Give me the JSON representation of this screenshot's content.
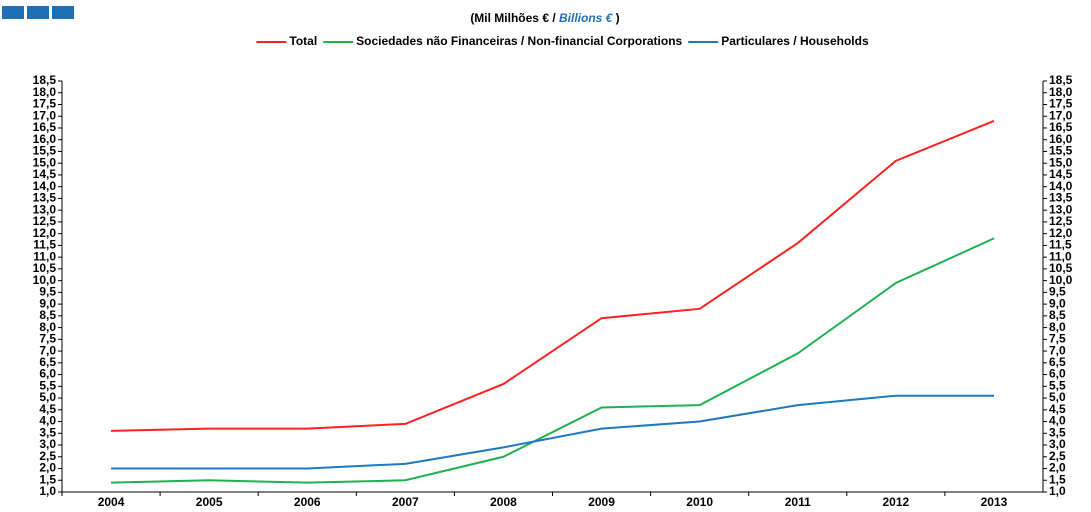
{
  "chart_data": {
    "type": "line",
    "subtitle": [
      "(Mil Milhões € / ",
      "Billions €",
      " )"
    ],
    "categories": [
      "2004",
      "2005",
      "2006",
      "2007",
      "2008",
      "2009",
      "2010",
      "2011",
      "2012",
      "2013"
    ],
    "series": [
      {
        "name": "Total",
        "color": "#ff2020",
        "values": [
          3.6,
          3.7,
          3.7,
          3.9,
          5.6,
          8.4,
          8.8,
          11.6,
          15.1,
          16.8
        ]
      },
      {
        "name": "Sociedades não Financeiras / Non-financial Corporations",
        "color": "#20b050",
        "values": [
          1.4,
          1.5,
          1.4,
          1.5,
          2.5,
          4.6,
          4.7,
          6.9,
          9.9,
          11.8
        ]
      },
      {
        "name": "Particulares / Households",
        "color": "#1f78c4",
        "values": [
          2.0,
          2.0,
          2.0,
          2.2,
          2.9,
          3.7,
          4.0,
          4.7,
          5.1,
          5.1
        ]
      }
    ],
    "ylim": [
      1,
      18.5
    ],
    "yticks": [
      {
        "value": 1,
        "label": "1,0"
      },
      {
        "value": 1.5,
        "label": "1,5"
      },
      {
        "value": 2,
        "label": "2,0"
      },
      {
        "value": 2.5,
        "label": "2,5"
      },
      {
        "value": 3,
        "label": "3,0"
      },
      {
        "value": 3.5,
        "label": "3,5"
      },
      {
        "value": 4,
        "label": "4,0"
      },
      {
        "value": 4.5,
        "label": "4,5"
      },
      {
        "value": 5,
        "label": "5,0"
      },
      {
        "value": 5.5,
        "label": "5,5"
      },
      {
        "value": 6,
        "label": "6,0"
      },
      {
        "value": 6.5,
        "label": "6,5"
      },
      {
        "value": 7,
        "label": "7,0"
      },
      {
        "value": 7.5,
        "label": "7,5"
      },
      {
        "value": 8,
        "label": "8,0"
      },
      {
        "value": 8.5,
        "label": "8,5"
      },
      {
        "value": 9,
        "label": "9,0"
      },
      {
        "value": 9.5,
        "label": "9,5"
      },
      {
        "value": 10,
        "label": "10,0"
      },
      {
        "value": 10.5,
        "label": "10,5"
      },
      {
        "value": 11,
        "label": "11,0"
      },
      {
        "value": 11.5,
        "label": "11,5"
      },
      {
        "value": 12,
        "label": "12,0"
      },
      {
        "value": 12.5,
        "label": "12,5"
      },
      {
        "value": 13,
        "label": "13,0"
      },
      {
        "value": 13.5,
        "label": "13,5"
      },
      {
        "value": 14,
        "label": "14,0"
      },
      {
        "value": 14.5,
        "label": "14,5"
      },
      {
        "value": 15,
        "label": "15,0"
      },
      {
        "value": 15.5,
        "label": "15,5"
      },
      {
        "value": 16,
        "label": "16,0"
      },
      {
        "value": 16.5,
        "label": "16,5"
      },
      {
        "value": 17,
        "label": "17,0"
      },
      {
        "value": 17.5,
        "label": "17,5"
      },
      {
        "value": 18,
        "label": "18,0"
      },
      {
        "value": 18.5,
        "label": "18,5"
      }
    ],
    "grid": false,
    "legend": "top"
  }
}
